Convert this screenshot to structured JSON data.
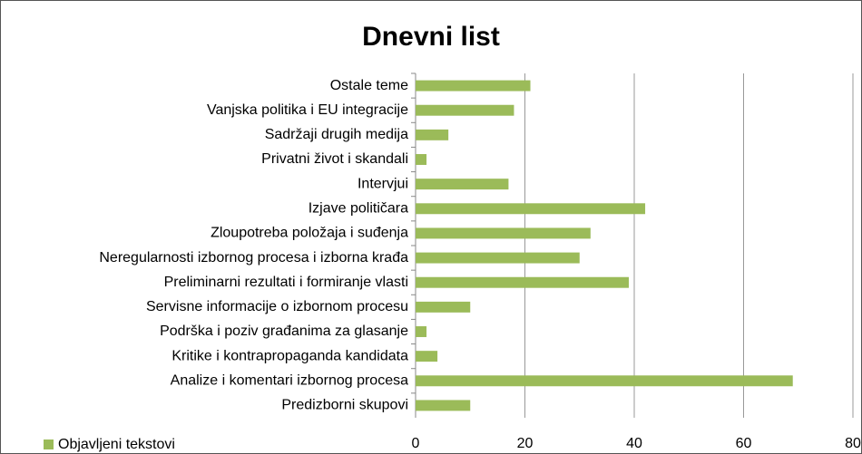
{
  "chart_data": {
    "type": "bar",
    "orientation": "horizontal",
    "title": "Dnevni list",
    "categories": [
      "Ostale teme",
      "Vanjska politika i EU integracije",
      "Sadržaji drugih medija",
      "Privatni život i skandali",
      "Intervjui",
      "Izjave političara",
      "Zloupotreba položaja i suđenja",
      "Neregularnosti izbornog procesa i izborna krađa",
      "Preliminarni rezultati i formiranje vlasti",
      "Servisne informacije o izbornom procesu",
      "Podrška i poziv građanima za glasanje",
      "Kritike i kontrapropaganda kandidata",
      "Analize i komentari izbornog procesa",
      "Predizborni skupovi"
    ],
    "series": [
      {
        "name": "Objavljeni tekstovi",
        "color": "#9bbb59",
        "values": [
          21,
          18,
          6,
          2,
          17,
          42,
          32,
          30,
          39,
          10,
          2,
          4,
          69,
          10
        ]
      }
    ],
    "xlim": [
      0,
      80
    ],
    "xticks": [
      0,
      20,
      40,
      60,
      80
    ],
    "grid": true,
    "legend": "bottom-left"
  }
}
